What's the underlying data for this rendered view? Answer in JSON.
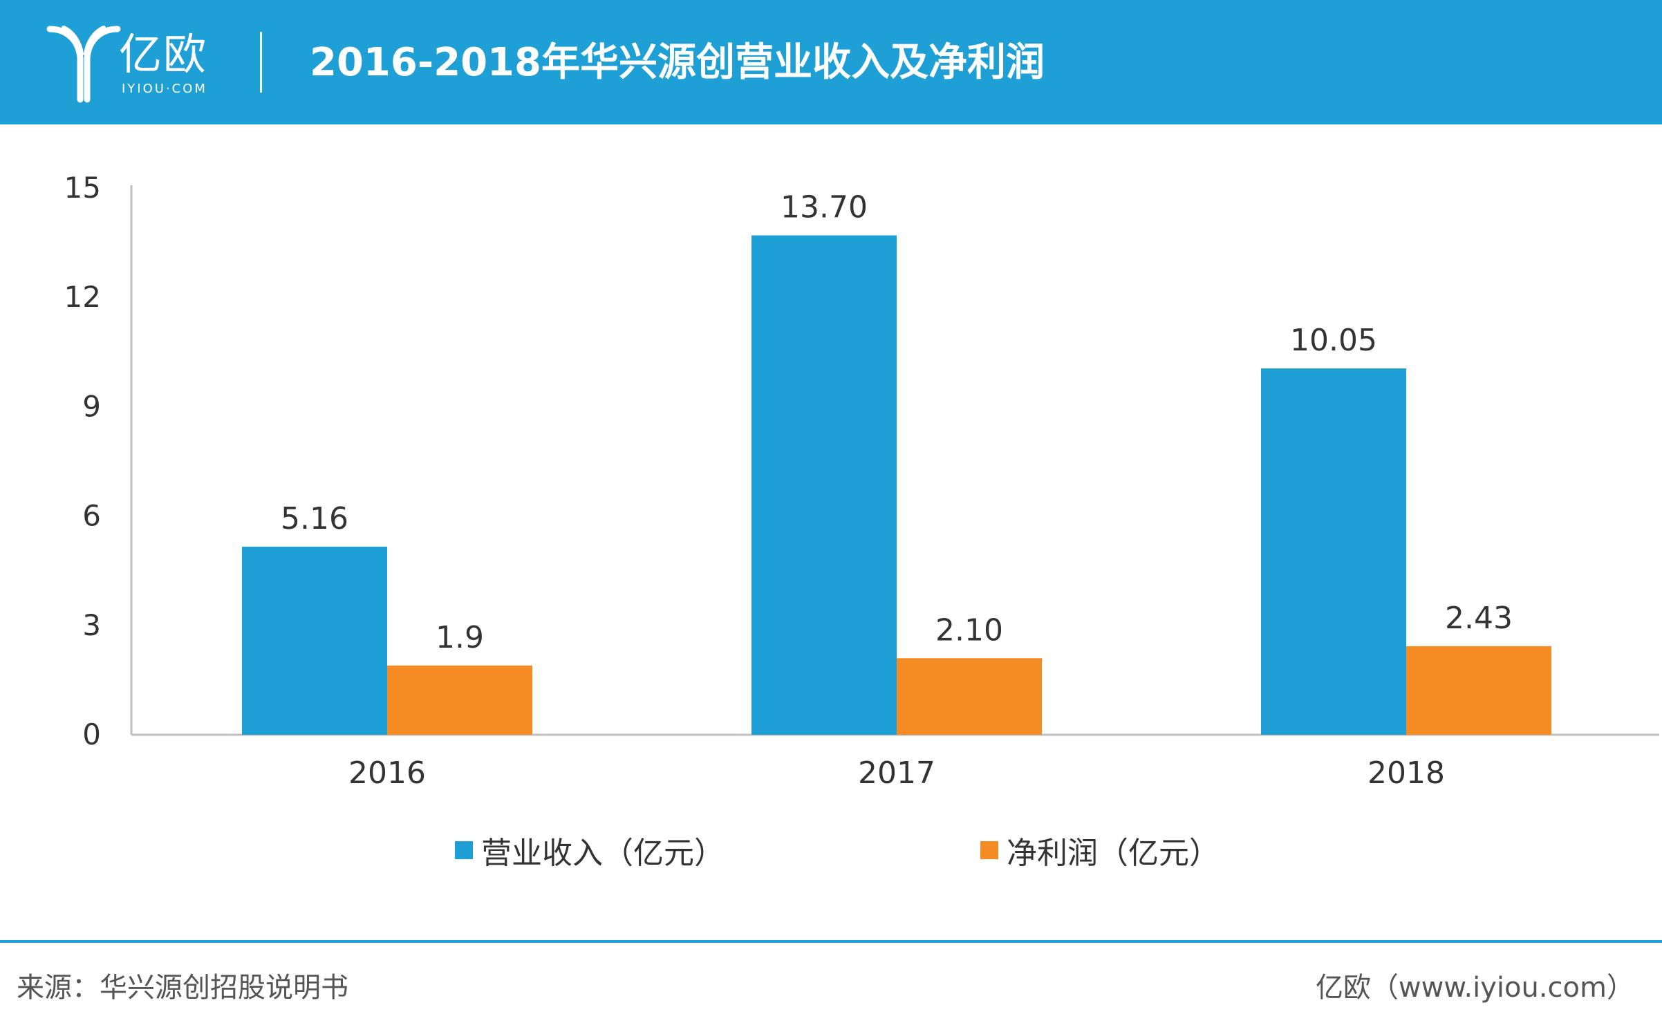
{
  "header": {
    "logo_text": "亿欧",
    "logo_sub": "IYIOU·COM",
    "title": "2016-2018年华兴源创营业收入及净利润"
  },
  "colors": {
    "header_bg": "#1e9fd5",
    "series_revenue": "#1e9fd5",
    "series_profit": "#f58b23"
  },
  "chart_data": {
    "type": "bar",
    "title": "2016-2018年华兴源创营业收入及净利润",
    "categories": [
      "2016",
      "2017",
      "2018"
    ],
    "series": [
      {
        "name": "营业收入（亿元）",
        "values": [
          5.16,
          13.7,
          10.05
        ],
        "labels": [
          "5.16",
          "13.70",
          "10.05"
        ],
        "color": "#1e9fd5"
      },
      {
        "name": "净利润（亿元）",
        "values": [
          1.9,
          2.1,
          2.43
        ],
        "labels": [
          "1.9",
          "2.10",
          "2.43"
        ],
        "color": "#f58b23"
      }
    ],
    "ylim": [
      0,
      15
    ],
    "yticks": [
      "0",
      "3",
      "6",
      "9",
      "12",
      "15"
    ],
    "xlabel": "",
    "ylabel": "",
    "grid": false,
    "legend_position": "bottom"
  },
  "footer": {
    "source": "来源：华兴源创招股说明书",
    "site": "亿欧（www.iyiou.com）"
  }
}
